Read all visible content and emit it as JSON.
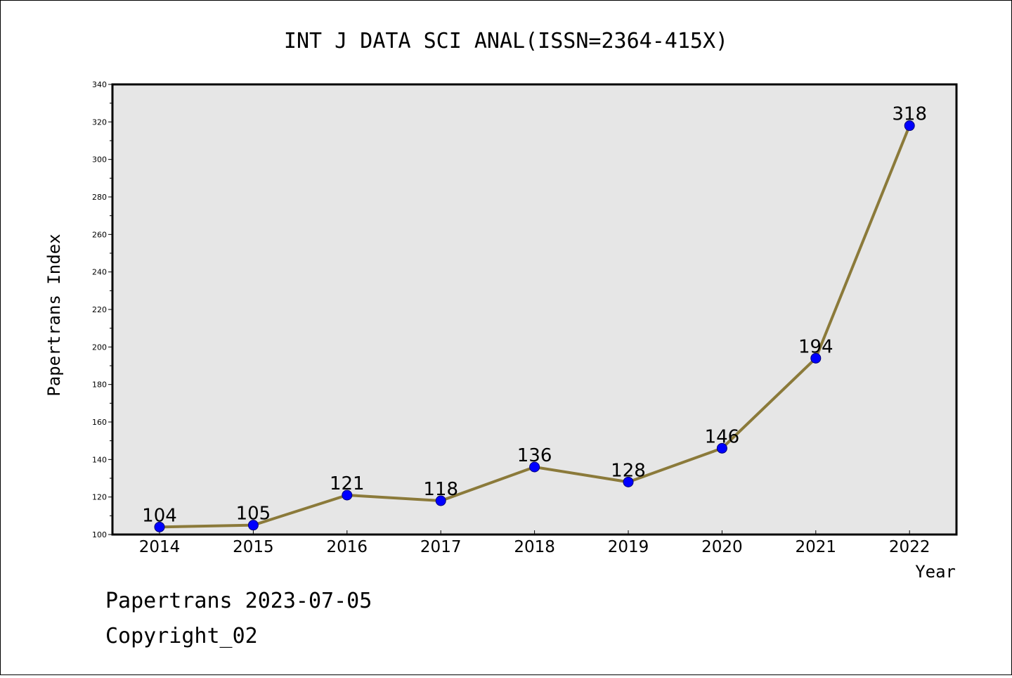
{
  "chart_data": {
    "type": "line",
    "title": "INT J DATA SCI ANAL(ISSN=2364-415X)",
    "xlabel": "Year",
    "ylabel": "Papertrans Index",
    "x": [
      "2014",
      "2015",
      "2016",
      "2017",
      "2018",
      "2019",
      "2020",
      "2021",
      "2022"
    ],
    "values": [
      104,
      105,
      121,
      118,
      136,
      128,
      146,
      194,
      318
    ],
    "data_labels": [
      "104",
      "105",
      "121",
      "118",
      "136",
      "128",
      "146",
      "194",
      "318"
    ],
    "ylim": [
      100,
      340
    ],
    "yticks": [
      100,
      120,
      140,
      160,
      180,
      200,
      220,
      240,
      260,
      280,
      300,
      320,
      340
    ],
    "grid": false,
    "legend": "none",
    "colors": {
      "line": "#8B7A3A",
      "marker": "#0000FF",
      "plot_background": "#E6E6E6"
    }
  },
  "footer": {
    "line1": "Papertrans 2023-07-05",
    "line2": "Copyright_02"
  }
}
